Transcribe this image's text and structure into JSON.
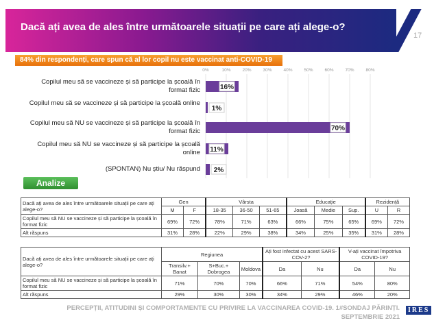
{
  "header": {
    "title": "Dacă ați avea de ales între următoarele situații pe care ați alege-o?",
    "page": "17"
  },
  "banner": "84% din respondenți, care spun că al lor copil nu este vaccinat anti-COVID-19",
  "chart_data": {
    "type": "bar",
    "orientation": "horizontal",
    "xlim": [
      0,
      80
    ],
    "ticks": [
      "0%",
      "10%",
      "20%",
      "30%",
      "40%",
      "50%",
      "60%",
      "70%",
      "80%"
    ],
    "categories": [
      "Copilul meu să se vaccineze și să participe la școală în format fizic",
      "Copilul meu să se vaccineze și să participe la școală online",
      "Copilul meu să NU se vaccineze și să participe la școală în format fizic",
      "Copilul meu să NU se vaccineze și să participe la școală online",
      "(SPONTAN) Nu știu/ Nu răspund"
    ],
    "values": [
      16,
      1,
      70,
      11,
      2
    ],
    "labels": [
      "16%",
      "1%",
      "70%",
      "11%",
      "2%"
    ],
    "color": "#6a3d9a"
  },
  "analyze_button": "Analize",
  "table1": {
    "question": "Dacă ați avea de ales între următoarele situații pe care ați alege-o?",
    "groups": [
      "Gen",
      "Vârsta",
      "Educație",
      "Rezidență"
    ],
    "cols": [
      "M",
      "F",
      "18-35",
      "36-50",
      "51-65",
      "Joasă",
      "Medie",
      "Sup.",
      "U",
      "R"
    ],
    "rows": [
      {
        "label": "Copilul meu să NU se vaccineze și să participe la școală în format fizic",
        "values": [
          "69%",
          "72%",
          "78%",
          "71%",
          "63%",
          "66%",
          "75%",
          "65%",
          "69%",
          "72%"
        ]
      },
      {
        "label": "Alt răspuns",
        "values": [
          "31%",
          "28%",
          "22%",
          "29%",
          "38%",
          "34%",
          "25%",
          "35%",
          "31%",
          "28%"
        ]
      }
    ]
  },
  "table2": {
    "question": "Dacă ați avea de ales între următoarele situații pe care ați alege-o?",
    "groups": [
      "Regiunea",
      "Ați fost infectat cu acest SARS-COV-2?",
      "V-ați vaccinat împotriva COVID-19?"
    ],
    "cols": [
      "Transilv.+ Banat",
      "S+Buc.+ Dobrogea",
      "Moldova",
      "Da",
      "Nu",
      "Da",
      "Nu"
    ],
    "rows": [
      {
        "label": "Copilul meu să NU se vaccineze și să participe la școală în format fizic",
        "values": [
          "71%",
          "70%",
          "70%",
          "66%",
          "71%",
          "54%",
          "80%"
        ]
      },
      {
        "label": "Alt răspuns",
        "values": [
          "29%",
          "30%",
          "30%",
          "34%",
          "29%",
          "46%",
          "20%"
        ]
      }
    ]
  },
  "footer": {
    "line1": "PERCEPȚII, ATITUDINI ȘI COMPORTAMENTE CU PRIVIRE LA VACCINAREA COVID-19. 1#SONDAJ PĂRINȚI.",
    "line2": "SEPTEMBRIE 2021",
    "logo": "IRES"
  }
}
